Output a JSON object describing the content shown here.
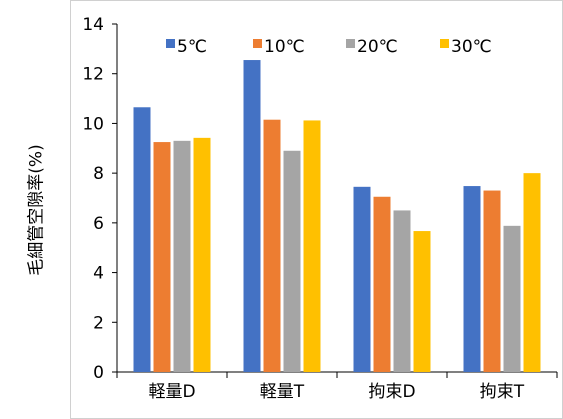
{
  "chart_data": {
    "type": "bar",
    "title": "",
    "xlabel": "",
    "ylabel": "毛細管空隙率(%)",
    "ylim": [
      0,
      14
    ],
    "yticks": [
      0,
      2,
      4,
      6,
      8,
      10,
      12,
      14
    ],
    "categories": [
      "軽量D",
      "軽量T",
      "拘束D",
      "拘束T"
    ],
    "legend_position": "top",
    "series": [
      {
        "name": "5℃",
        "color": "#4472C4",
        "values": [
          10.65,
          12.55,
          7.45,
          7.48
        ]
      },
      {
        "name": "10℃",
        "color": "#ED7D31",
        "values": [
          9.25,
          10.15,
          7.05,
          7.3
        ]
      },
      {
        "name": "20℃",
        "color": "#A5A5A5",
        "values": [
          9.3,
          8.9,
          6.5,
          5.88
        ]
      },
      {
        "name": "30℃",
        "color": "#FFC000",
        "values": [
          9.42,
          10.12,
          5.67,
          8.0
        ]
      }
    ],
    "grid": false
  }
}
